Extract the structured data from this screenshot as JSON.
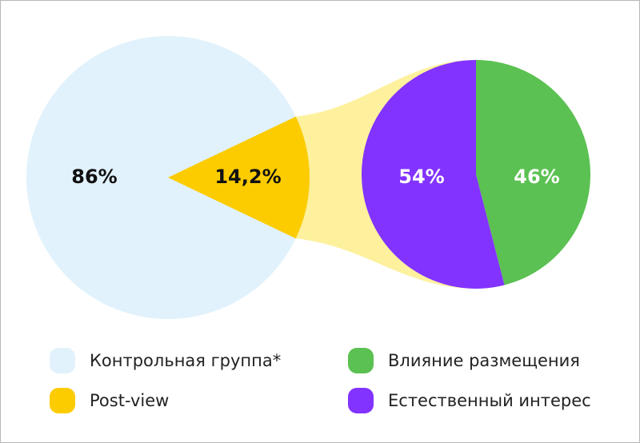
{
  "chart_data": {
    "type": "pie",
    "charts": [
      {
        "slices": [
          {
            "name": "Контрольная группа*",
            "value": 86,
            "label": "86%",
            "color": "#e1f2fc",
            "label_color": "#111111"
          },
          {
            "name": "Post-view",
            "value": 14.2,
            "label": "14,2%",
            "color": "#fccc00",
            "label_color": "#111111"
          }
        ]
      },
      {
        "slices": [
          {
            "name": "Влияние размещения",
            "value": 46,
            "label": "46%",
            "color": "#5bc152",
            "label_color": "#ffffff"
          },
          {
            "name": "Естественный интерес",
            "value": 54,
            "label": "54%",
            "color": "#8233ff",
            "label_color": "#ffffff"
          }
        ]
      }
    ],
    "connector_color": "#fdf19e"
  },
  "legend": [
    {
      "label": "Контрольная группа*",
      "color": "#e1f2fc"
    },
    {
      "label": "Влияние размещения",
      "color": "#5bc152"
    },
    {
      "label": "Post-view",
      "color": "#fccc00"
    },
    {
      "label": "Естественный интерес",
      "color": "#8233ff"
    }
  ]
}
